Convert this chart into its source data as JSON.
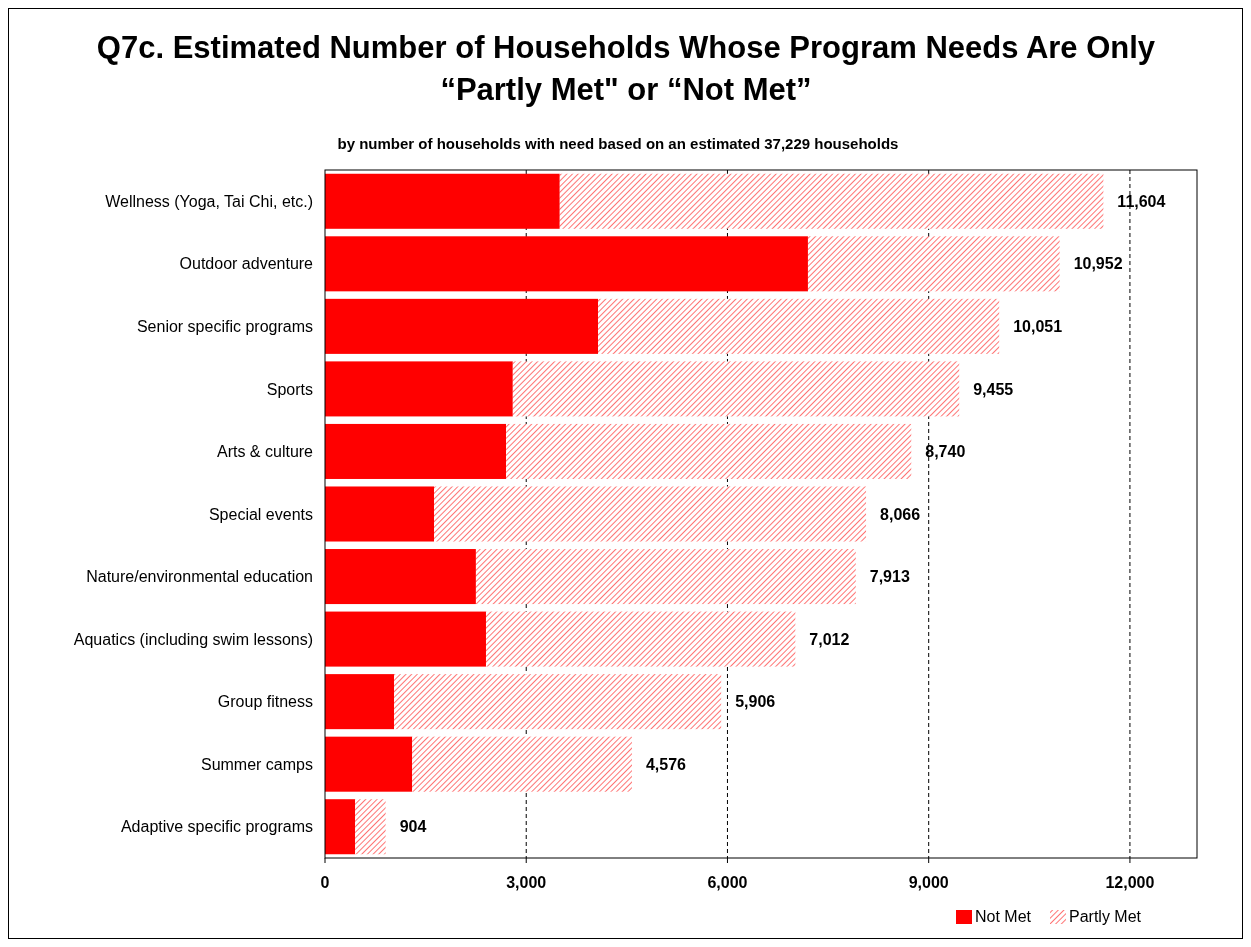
{
  "chart_data": {
    "type": "bar",
    "orientation": "horizontal",
    "stacked": true,
    "title": "Q7c. Estimated Number of Households Whose Program Needs Are Only “Partly Met\" or “Not Met”",
    "subtitle": "by number of households with need based on an estimated 37,229 households",
    "categories": [
      "Wellness (Yoga, Tai Chi, etc.)",
      "Outdoor adventure",
      "Senior specific programs",
      "Sports",
      "Arts & culture",
      "Special events",
      "Nature/environmental education",
      "Aquatics (including swim lessons)",
      "Group fitness",
      "Summer camps",
      "Adaptive specific programs"
    ],
    "series": [
      {
        "name": "Not Met",
        "color": "#ff0000",
        "values": [
          3500,
          7200,
          4070,
          2800,
          2700,
          1625,
          2250,
          2400,
          1030,
          1300,
          450
        ]
      },
      {
        "name": "Partly Met",
        "color": "#ff5050",
        "values": [
          8104,
          3752,
          5981,
          6655,
          6040,
          6441,
          5663,
          4612,
          4876,
          3276,
          454
        ]
      }
    ],
    "totals": [
      "11,604",
      "10,952",
      "10,051",
      "9,455",
      "8,740",
      "8,066",
      "7,913",
      "7,012",
      "5,906",
      "4,576",
      "904"
    ],
    "xlim": [
      0,
      13000
    ],
    "xticks": [
      {
        "value": 0,
        "label": "0"
      },
      {
        "value": 3000,
        "label": "3,000"
      },
      {
        "value": 6000,
        "label": "6,000"
      },
      {
        "value": 9000,
        "label": "9,000"
      },
      {
        "value": 12000,
        "label": "12,000"
      }
    ],
    "grid": "x",
    "legend": "bottom right"
  }
}
